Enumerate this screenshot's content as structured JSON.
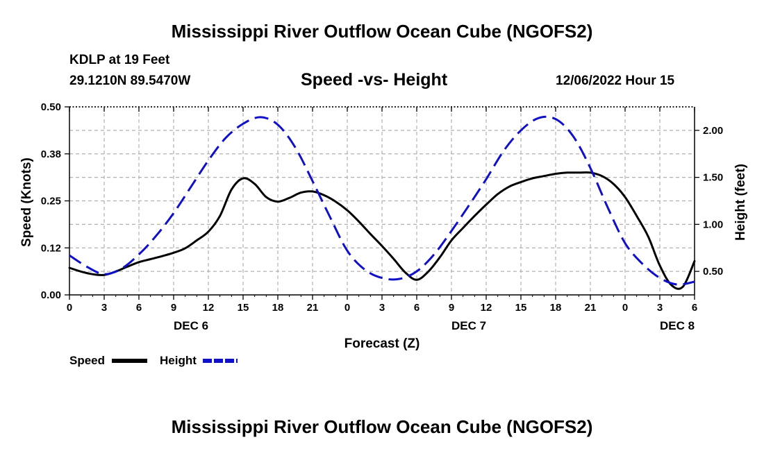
{
  "page": {
    "title_top": "Mississippi River Outflow Ocean Cube (NGOFS2)",
    "title_bottom": "Mississippi River Outflow Ocean Cube (NGOFS2)",
    "station": "KDLP at 19 Feet",
    "coordinates": "29.1210N  89.5470W",
    "datetime": "12/06/2022 Hour 15"
  },
  "chart_data": {
    "type": "line",
    "title": "Speed -vs- Height",
    "xlabel": "Forecast (Z)",
    "ylabel": "Speed (Knots)",
    "y2label": "Height (feet)",
    "xlim": [
      0,
      54
    ],
    "ylim": [
      0,
      0.5
    ],
    "y2lim": [
      0.25,
      2.25
    ],
    "x_ticks": [
      0,
      3,
      6,
      9,
      12,
      15,
      18,
      21,
      24,
      27,
      30,
      33,
      36,
      39,
      42,
      45,
      48,
      51,
      54
    ],
    "x_tick_labels": [
      "0",
      "3",
      "6",
      "9",
      "12",
      "15",
      "18",
      "21",
      "0",
      "3",
      "6",
      "9",
      "12",
      "15",
      "18",
      "21",
      "0",
      "3",
      "6"
    ],
    "y_ticks": [
      0,
      0.125,
      0.25,
      0.375,
      0.5
    ],
    "y_tick_labels": [
      "0.00",
      "0.12",
      "0.25",
      "0.38",
      "0.50"
    ],
    "y2_ticks": [
      0.5,
      1.0,
      1.5,
      2.0
    ],
    "y2_tick_labels": [
      "0.50",
      "1.00",
      "1.50",
      "2.00"
    ],
    "day_labels": [
      {
        "x": 10.5,
        "label": "DEC 6"
      },
      {
        "x": 34.5,
        "label": "DEC 7"
      },
      {
        "x": 52.5,
        "label": "DEC 8"
      }
    ],
    "series": [
      {
        "name": "Speed",
        "axis": "left",
        "color": "#000000",
        "style": "solid",
        "x": [
          0,
          1,
          2,
          3,
          4,
          5,
          6,
          7,
          8,
          9,
          10,
          11,
          12,
          13,
          14,
          15,
          16,
          17,
          18,
          19,
          20,
          21,
          22,
          23,
          24,
          25,
          26,
          27,
          28,
          29,
          30,
          31,
          32,
          33,
          34,
          35,
          36,
          37,
          38,
          39,
          40,
          41,
          42,
          43,
          44,
          45,
          46,
          47,
          48,
          49,
          50,
          51,
          52,
          53,
          54
        ],
        "y": [
          0.072,
          0.062,
          0.055,
          0.053,
          0.062,
          0.075,
          0.087,
          0.095,
          0.103,
          0.112,
          0.124,
          0.145,
          0.168,
          0.21,
          0.28,
          0.31,
          0.295,
          0.26,
          0.248,
          0.258,
          0.272,
          0.275,
          0.265,
          0.248,
          0.225,
          0.195,
          0.162,
          0.13,
          0.096,
          0.06,
          0.04,
          0.062,
          0.1,
          0.145,
          0.178,
          0.21,
          0.24,
          0.268,
          0.288,
          0.3,
          0.31,
          0.316,
          0.322,
          0.325,
          0.325,
          0.325,
          0.316,
          0.295,
          0.26,
          0.21,
          0.155,
          0.078,
          0.026,
          0.022,
          0.09
        ]
      },
      {
        "name": "Height",
        "axis": "right",
        "color": "#1010c8",
        "style": "dashed",
        "x": [
          0,
          1.5,
          3,
          4.5,
          6,
          7.5,
          9,
          10.5,
          12,
          13.5,
          15,
          16.5,
          18,
          19.5,
          21,
          22.5,
          24,
          25.5,
          27,
          28.5,
          30,
          31.5,
          33,
          34.5,
          36,
          37.5,
          39,
          40.5,
          42,
          43.5,
          45,
          46.5,
          48,
          49.5,
          51,
          52.5,
          54
        ],
        "y": [
          0.67,
          0.55,
          0.47,
          0.53,
          0.68,
          0.88,
          1.12,
          1.4,
          1.68,
          1.92,
          2.07,
          2.14,
          2.06,
          1.82,
          1.46,
          1.08,
          0.72,
          0.52,
          0.43,
          0.42,
          0.5,
          0.68,
          0.93,
          1.2,
          1.48,
          1.78,
          2.0,
          2.13,
          2.12,
          1.94,
          1.6,
          1.18,
          0.8,
          0.58,
          0.43,
          0.36,
          0.39
        ]
      }
    ],
    "legend": [
      {
        "label": "Speed",
        "color": "#000000",
        "style": "solid"
      },
      {
        "label": "Height",
        "color": "#1010c8",
        "style": "dashed"
      }
    ],
    "legend_position": "bottom-left",
    "grid": true
  }
}
